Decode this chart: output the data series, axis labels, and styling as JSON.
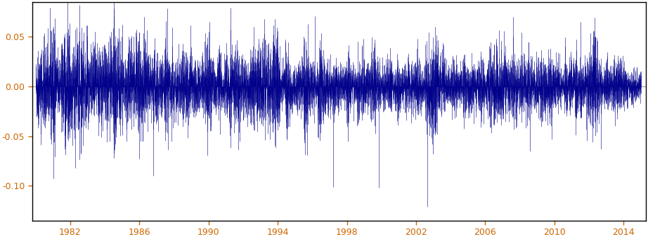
{
  "title": "",
  "xlabel": "",
  "ylabel": "",
  "x_start_year": 1980,
  "x_end_year": 2015,
  "ylim": [
    -0.135,
    0.085
  ],
  "yticks": [
    -0.1,
    -0.05,
    0,
    0.05
  ],
  "xtick_years": [
    1982,
    1986,
    1990,
    1994,
    1998,
    2002,
    2006,
    2010,
    2014
  ],
  "line_color": "#00008B",
  "tick_color": "#CC6600",
  "background_color": "#FFFFFF",
  "spine_color": "#000000",
  "seed": 42,
  "n_points": 9000,
  "base_std": 0.012,
  "garch_alpha": 0.08,
  "garch_beta": 0.9,
  "early_boost": 1.6,
  "early_decay": 0.0003,
  "extreme_events": [
    {
      "index": 590,
      "value": -0.082
    },
    {
      "index": 1750,
      "value": -0.09
    },
    {
      "index": 2580,
      "value": 0.065
    },
    {
      "index": 3400,
      "value": 0.068
    },
    {
      "index": 4150,
      "value": 0.071
    },
    {
      "index": 4420,
      "value": -0.101
    },
    {
      "index": 5100,
      "value": -0.102
    },
    {
      "index": 5820,
      "value": -0.121
    },
    {
      "index": 7100,
      "value": 0.07
    },
    {
      "index": 7350,
      "value": -0.065
    },
    {
      "index": 8100,
      "value": 0.065
    },
    {
      "index": 8400,
      "value": -0.063
    }
  ]
}
